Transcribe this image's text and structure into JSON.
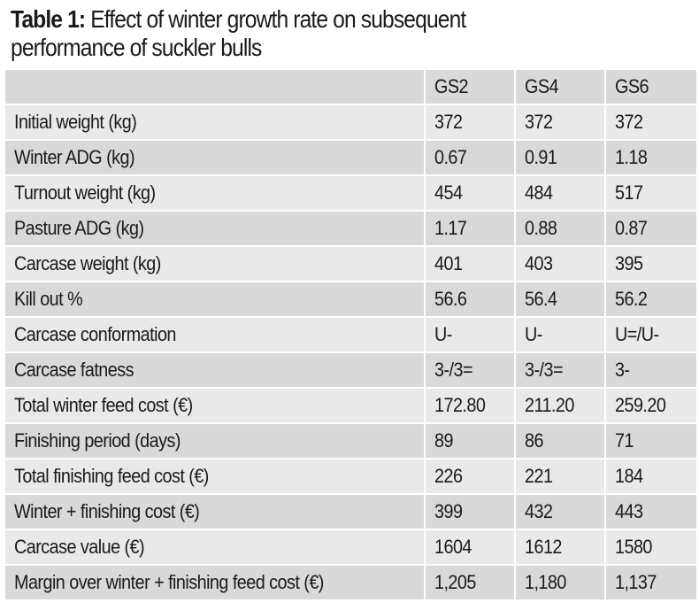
{
  "title": {
    "label": "Table 1:",
    "text": " Effect of winter growth rate on subsequent",
    "line2": "performance of suckler bulls"
  },
  "columns": [
    "",
    "GS2",
    "GS4",
    "GS6"
  ],
  "rows": [
    [
      "Initial weight (kg)",
      "372",
      "372",
      "372"
    ],
    [
      "Winter ADG (kg)",
      "0.67",
      "0.91",
      "1.18"
    ],
    [
      "Turnout weight (kg)",
      "454",
      "484",
      "517"
    ],
    [
      "Pasture ADG (kg)",
      "1.17",
      "0.88",
      "0.87"
    ],
    [
      "Carcase weight (kg)",
      "401",
      "403",
      "395"
    ],
    [
      "Kill out %",
      "56.6",
      "56.4",
      "56.2"
    ],
    [
      "Carcase conformation",
      "U-",
      "U-",
      "U=/U-"
    ],
    [
      "Carcase fatness",
      "3-/3=",
      "3-/3=",
      "3-"
    ],
    [
      "Total winter feed cost (€)",
      "172.80",
      "211.20",
      "259.20"
    ],
    [
      "Finishing period (days)",
      "89",
      "86",
      "71"
    ],
    [
      "Total finishing feed cost (€)",
      "226",
      "221",
      "184"
    ],
    [
      "Winter + finishing cost (€)",
      "399",
      "432",
      "443"
    ],
    [
      "Carcase value (€)",
      "1604",
      "1612",
      "1580"
    ],
    [
      "Margin over winter + finishing feed cost (€)",
      "1,205",
      "1,180",
      "1,137"
    ]
  ]
}
